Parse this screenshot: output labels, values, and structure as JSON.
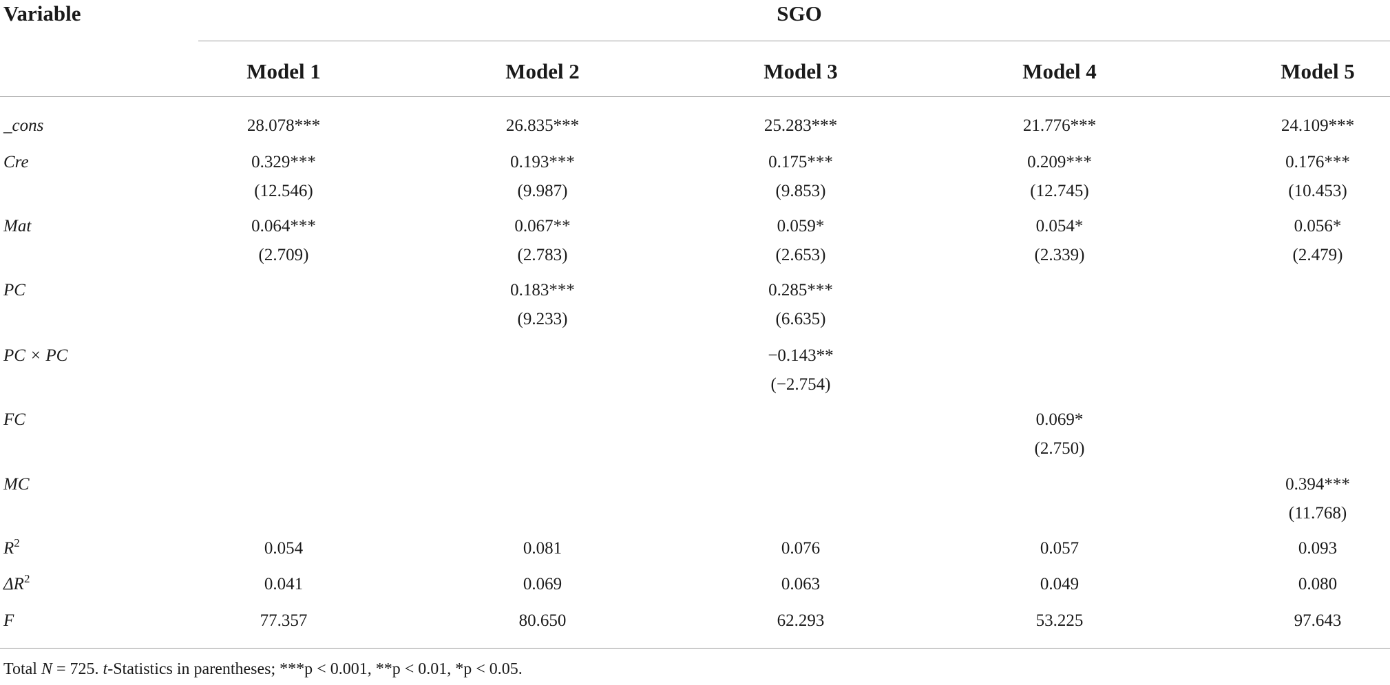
{
  "header": {
    "variable_label": "Variable",
    "group_label": "SGO",
    "models": [
      "Model 1",
      "Model 2",
      "Model 3",
      "Model 4",
      "Model 5"
    ]
  },
  "rows": {
    "cons": {
      "label": "_cons",
      "coef": [
        "28.078***",
        "26.835***",
        "25.283***",
        "21.776***",
        "24.109***"
      ]
    },
    "cre": {
      "label": "Cre",
      "coef": [
        "0.329***",
        "0.193***",
        "0.175***",
        "0.209***",
        "0.176***"
      ],
      "t": [
        "(12.546)",
        "(9.987)",
        "(9.853)",
        "(12.745)",
        "(10.453)"
      ]
    },
    "mat": {
      "label": "Mat",
      "coef": [
        "0.064***",
        "0.067**",
        "0.059*",
        "0.054*",
        "0.056*"
      ],
      "t": [
        "(2.709)",
        "(2.783)",
        "(2.653)",
        "(2.339)",
        "(2.479)"
      ]
    },
    "pc": {
      "label": "PC",
      "coef": [
        "",
        "0.183***",
        "0.285***",
        "",
        ""
      ],
      "t": [
        "",
        "(9.233)",
        "(6.635)",
        "",
        ""
      ]
    },
    "pcxpc": {
      "label": "PC × PC",
      "coef": [
        "",
        "",
        "−0.143**",
        "",
        ""
      ],
      "t": [
        "",
        "",
        "(−2.754)",
        "",
        ""
      ]
    },
    "fc": {
      "label": "FC",
      "coef": [
        "",
        "",
        "",
        "0.069*",
        ""
      ],
      "t": [
        "",
        "",
        "",
        "(2.750)",
        ""
      ]
    },
    "mc": {
      "label": "MC",
      "coef": [
        "",
        "",
        "",
        "",
        "0.394***"
      ],
      "t": [
        "",
        "",
        "",
        "",
        "(11.768)"
      ]
    },
    "r2": {
      "label": "R",
      "sup": "2",
      "values": [
        "0.054",
        "0.081",
        "0.076",
        "0.057",
        "0.093"
      ]
    },
    "dr2": {
      "label": "ΔR",
      "sup": "2",
      "values": [
        "0.041",
        "0.069",
        "0.063",
        "0.049",
        "0.080"
      ]
    },
    "f": {
      "label": "F",
      "values": [
        "77.357",
        "80.650",
        "62.293",
        "53.225",
        "97.643"
      ]
    }
  },
  "note": {
    "prefix": "Total ",
    "n_symbol": "N",
    "n_text": " = 725. ",
    "t_symbol": "t",
    "rest": "-Statistics in parentheses; ***p < 0.001, **p < 0.01, *p < 0.05."
  }
}
